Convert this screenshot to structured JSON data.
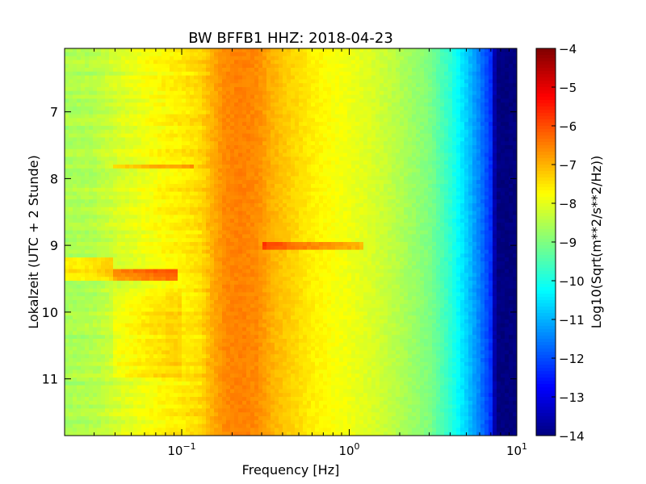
{
  "chart_data": {
    "type": "heatmap",
    "title": "BW BFFB1 HHZ: 2018-04-23",
    "xlabel": "Frequency [Hz]",
    "ylabel": "Lokalzeit (UTC + 2 Stunde)",
    "colorbar_label": "Log10(Sqrt(m**2/s**2/Hz))",
    "x_scale": "log",
    "xlim": [
      0.02,
      10
    ],
    "ylim": [
      11.85,
      6.05
    ],
    "y_inverted": true,
    "clim": [
      -14,
      -4
    ],
    "colormap": "jet",
    "x_ticks": [
      {
        "value": 0.1,
        "base": "10",
        "exp": "−1"
      },
      {
        "value": 1,
        "base": "10",
        "exp": "0"
      },
      {
        "value": 10,
        "base": "10",
        "exp": "1"
      }
    ],
    "y_ticks": [
      {
        "value": 7,
        "label": "7"
      },
      {
        "value": 8,
        "label": "8"
      },
      {
        "value": 9,
        "label": "9"
      },
      {
        "value": 10,
        "label": "10"
      },
      {
        "value": 11,
        "label": "11"
      }
    ],
    "colorbar_ticks": [
      {
        "value": -4,
        "label": "−4"
      },
      {
        "value": -5,
        "label": "−5"
      },
      {
        "value": -6,
        "label": "−6"
      },
      {
        "value": -7,
        "label": "−7"
      },
      {
        "value": -8,
        "label": "−8"
      },
      {
        "value": -9,
        "label": "−9"
      },
      {
        "value": -10,
        "label": "−10"
      },
      {
        "value": -11,
        "label": "−11"
      },
      {
        "value": -12,
        "label": "−12"
      },
      {
        "value": -13,
        "label": "−13"
      },
      {
        "value": -14,
        "label": "−14"
      }
    ],
    "spectrum_profile": {
      "freq_hz": [
        0.02,
        0.03,
        0.04,
        0.06,
        0.08,
        0.1,
        0.13,
        0.15,
        0.18,
        0.22,
        0.28,
        0.35,
        0.45,
        0.6,
        0.8,
        1.0,
        1.5,
        2.0,
        3.0,
        4.0,
        5.0,
        6.0,
        7.0,
        7.5,
        10.0
      ],
      "log10_psd": [
        -8.6,
        -8.5,
        -8.2,
        -7.9,
        -7.7,
        -7.6,
        -7.4,
        -7.0,
        -6.6,
        -6.5,
        -6.6,
        -7.0,
        -7.3,
        -7.6,
        -7.8,
        -7.9,
        -8.2,
        -8.5,
        -9.0,
        -9.8,
        -10.7,
        -11.5,
        -12.3,
        -14.0,
        -14.0
      ]
    },
    "features": [
      {
        "time_start": 9.2,
        "time_end": 9.55,
        "freq_start": 0.02,
        "freq_end": 0.04,
        "delta": 1.0
      },
      {
        "time_start": 9.35,
        "time_end": 9.55,
        "freq_start": 0.04,
        "freq_end": 0.095,
        "delta": 1.5
      },
      {
        "time_start": 7.78,
        "time_end": 7.86,
        "freq_start": 0.04,
        "freq_end": 0.12,
        "delta": 0.7
      },
      {
        "time_start": 8.96,
        "time_end": 9.04,
        "freq_start": 0.3,
        "freq_end": 1.2,
        "delta": 1.0
      },
      {
        "time_start": 9.7,
        "time_end": 11.0,
        "freq_start": 0.04,
        "freq_end": 0.1,
        "delta": 0.3
      }
    ]
  }
}
